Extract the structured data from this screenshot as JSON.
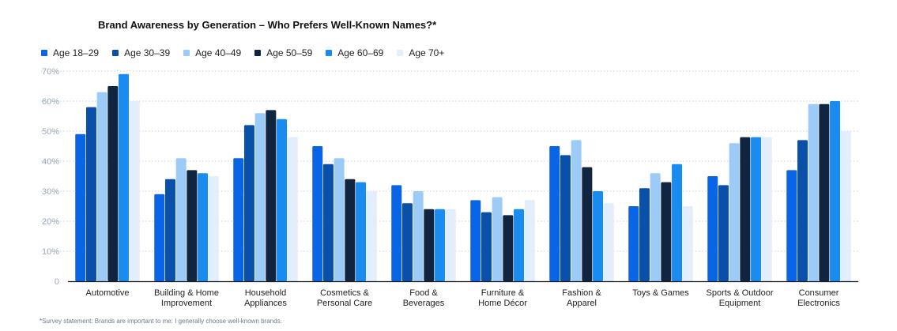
{
  "chart_data": {
    "type": "bar",
    "title": "Brand Awareness by Generation – Who Prefers Well-Known Names?*",
    "categories": [
      [
        "Automotive"
      ],
      [
        "Building & Home",
        "Improvement"
      ],
      [
        "Household",
        "Appliances"
      ],
      [
        "Cosmetics &",
        "Personal Care"
      ],
      [
        "Food &",
        "Beverages"
      ],
      [
        "Furniture &",
        "Home Décor"
      ],
      [
        "Fashion &",
        "Apparel"
      ],
      [
        "Toys & Games"
      ],
      [
        "Sports & Outdoor",
        "Equipment"
      ],
      [
        "Consumer",
        "Electronics"
      ]
    ],
    "series": [
      {
        "name": "Age 18–29",
        "color": "#0a64e6",
        "values": [
          49,
          29,
          41,
          45,
          32,
          27,
          45,
          25,
          35,
          37
        ]
      },
      {
        "name": "Age 30–39",
        "color": "#0a4fa8",
        "values": [
          58,
          34,
          52,
          39,
          26,
          23,
          42,
          31,
          32,
          47
        ]
      },
      {
        "name": "Age 40–49",
        "color": "#9dcbf8",
        "values": [
          63,
          41,
          56,
          41,
          30,
          28,
          47,
          36,
          46,
          59
        ]
      },
      {
        "name": "Age 50–59",
        "color": "#0f2540",
        "values": [
          65,
          37,
          57,
          34,
          24,
          22,
          38,
          33,
          48,
          59
        ]
      },
      {
        "name": "Age 60–69",
        "color": "#1a8cf0",
        "values": [
          69,
          36,
          54,
          33,
          24,
          24,
          30,
          39,
          48,
          60
        ]
      },
      {
        "name": "Age 70+",
        "color": "#e3eefc",
        "values": [
          60,
          35,
          48,
          30,
          24,
          27,
          26,
          25,
          48,
          50
        ]
      }
    ],
    "yticks": [
      "0",
      "10%",
      "20%",
      "30%",
      "40%",
      "50%",
      "60%",
      "70%"
    ],
    "ylim": [
      0,
      70
    ],
    "grid": true,
    "legend_position": "top-left",
    "footnote": "*Survey statement: Brands are important to me: I generally choose well-known brands."
  }
}
